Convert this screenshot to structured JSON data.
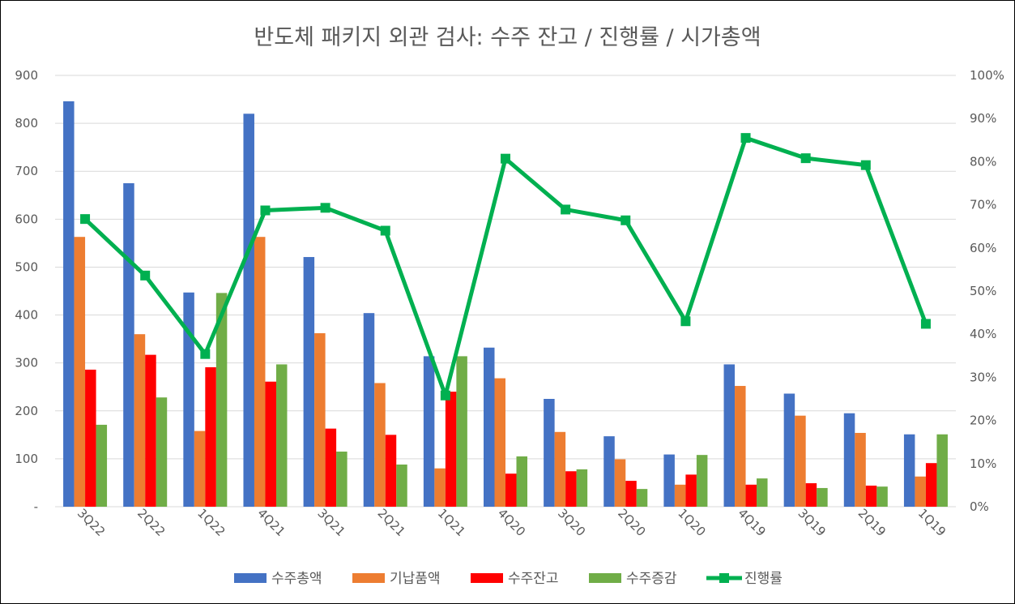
{
  "chart_data": {
    "type": "bar",
    "title": "반도체 패키지 외관 검사: 수주 잔고 / 진행률 / 시가총액",
    "categories": [
      "3Q22",
      "2Q22",
      "1Q22",
      "4Q21",
      "3Q21",
      "2Q21",
      "1Q21",
      "4Q20",
      "3Q20",
      "2Q20",
      "1Q20",
      "4Q19",
      "3Q19",
      "2Q19",
      "1Q19"
    ],
    "y_left": {
      "ylim": [
        0,
        900
      ],
      "ticks": [
        "-",
        "100",
        "200",
        "300",
        "400",
        "500",
        "600",
        "700",
        "800",
        "900"
      ]
    },
    "y_right": {
      "ylim": [
        0,
        100
      ],
      "ticks": [
        "0%",
        "10%",
        "20%",
        "30%",
        "40%",
        "50%",
        "60%",
        "70%",
        "80%",
        "90%",
        "100%"
      ]
    },
    "grid": true,
    "legend_position": "bottom",
    "series": [
      {
        "name": "수주총액",
        "type": "bar",
        "axis": "left",
        "color": "#4472C4",
        "values": [
          846,
          675,
          447,
          820,
          521,
          404,
          314,
          332,
          225,
          147,
          109,
          297,
          236,
          195,
          151
        ]
      },
      {
        "name": "기납품액",
        "type": "bar",
        "axis": "left",
        "color": "#ED7D31",
        "values": [
          563,
          360,
          158,
          563,
          362,
          258,
          80,
          268,
          156,
          99,
          46,
          252,
          190,
          154,
          63
        ]
      },
      {
        "name": "수주잔고",
        "type": "bar",
        "axis": "left",
        "color": "#FF0000",
        "values": [
          286,
          317,
          291,
          261,
          163,
          150,
          240,
          69,
          74,
          54,
          67,
          46,
          49,
          44,
          91
        ]
      },
      {
        "name": "수주증감",
        "type": "bar",
        "axis": "left",
        "color": "#70AD47",
        "values": [
          171,
          228,
          446,
          297,
          115,
          88,
          314,
          105,
          78,
          37,
          108,
          59,
          39,
          42,
          151
        ]
      },
      {
        "name": "진행률",
        "type": "line",
        "axis": "right",
        "color": "#00B050",
        "values": [
          66.7,
          53.6,
          35.4,
          68.7,
          69.3,
          64.0,
          25.8,
          80.7,
          68.9,
          66.4,
          43.0,
          85.5,
          80.8,
          79.2,
          42.4
        ]
      }
    ]
  }
}
